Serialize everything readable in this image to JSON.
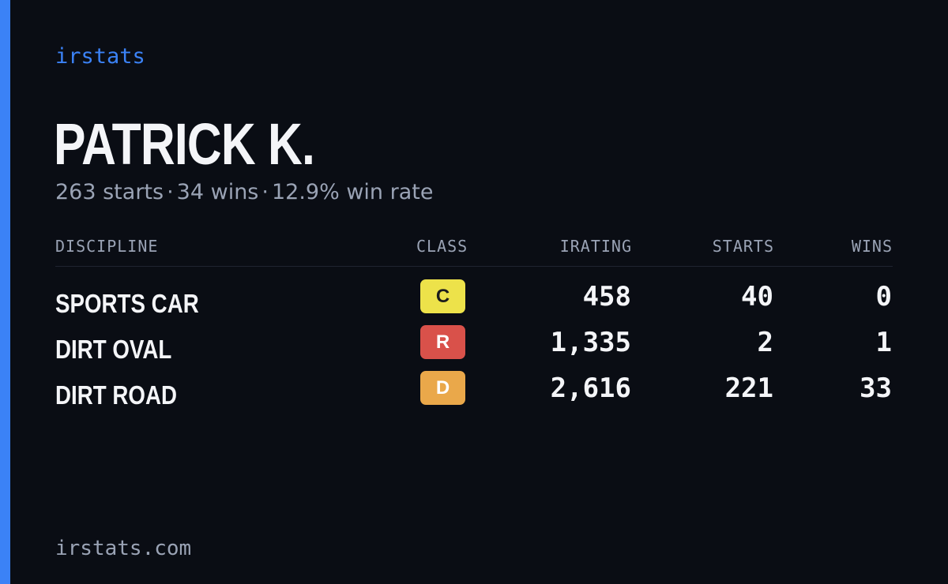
{
  "brand": "irstats",
  "driver_name": "PATRICK K.",
  "summary": {
    "starts": "263 starts",
    "wins": "34 wins",
    "win_rate": "12.9% win rate",
    "separator": "·"
  },
  "table": {
    "headers": {
      "discipline": "DISCIPLINE",
      "class": "CLASS",
      "irating": "IRATING",
      "starts": "STARTS",
      "wins": "WINS"
    },
    "rows": [
      {
        "discipline": "SPORTS CAR",
        "class": "C",
        "class_color": "#ede24a",
        "class_text_color": "#1c1c1c",
        "irating": "458",
        "starts": "40",
        "wins": "0"
      },
      {
        "discipline": "DIRT OVAL",
        "class": "R",
        "class_color": "#d9514a",
        "class_text_color": "#ffffff",
        "irating": "1,335",
        "starts": "2",
        "wins": "1"
      },
      {
        "discipline": "DIRT ROAD",
        "class": "D",
        "class_color": "#eaa84a",
        "class_text_color": "#ffffff",
        "irating": "2,616",
        "starts": "221",
        "wins": "33"
      }
    ]
  },
  "footer": "irstats.com",
  "colors": {
    "background": "#0a0d14",
    "accent": "#3b82f6",
    "muted_text": "#9aa3b5",
    "primary_text": "#f4f5f8"
  }
}
